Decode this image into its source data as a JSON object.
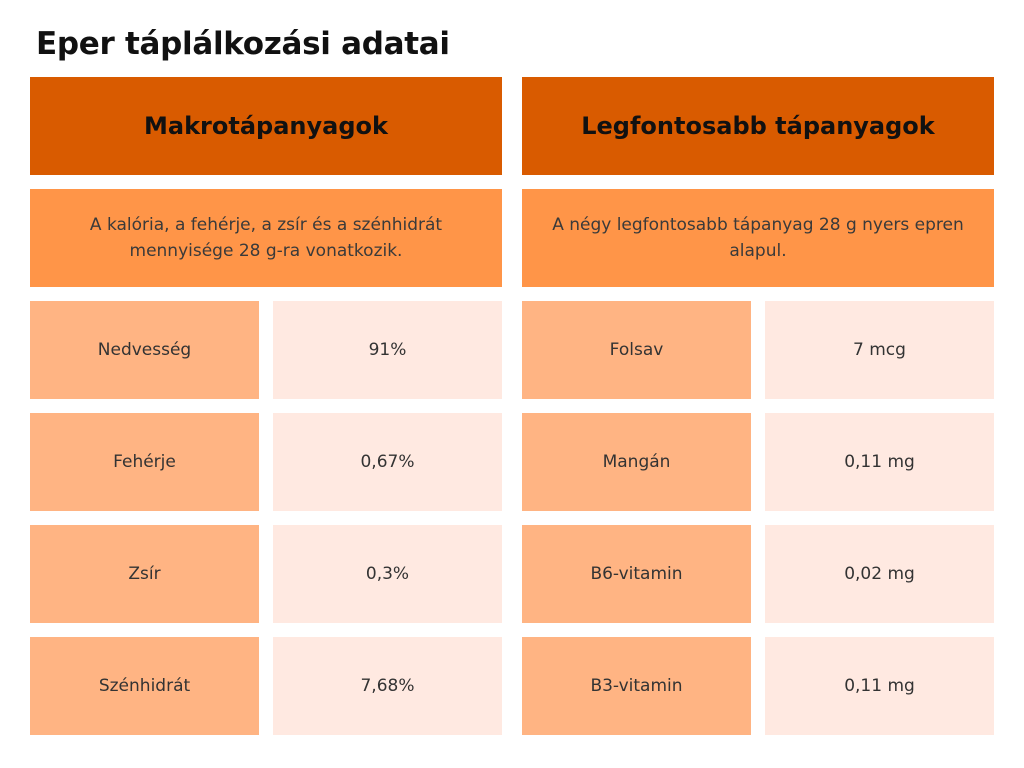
{
  "title": "Eper táplálkozási adatai",
  "sections": [
    {
      "header": "Makrotápanyagok",
      "note": "A kalória, a fehérje, a zsír és a szénhidrát mennyisége 28 g-ra vonatkozik.",
      "rows": [
        {
          "label": "Nedvesség",
          "value": "91%"
        },
        {
          "label": "Fehérje",
          "value": "0,67%"
        },
        {
          "label": "Zsír",
          "value": "0,3%"
        },
        {
          "label": "Szénhidrát",
          "value": "7,68%"
        }
      ]
    },
    {
      "header": "Legfontosabb tápanyagok",
      "note": "A négy legfontosabb tápanyag 28 g nyers epren alapul.",
      "rows": [
        {
          "label": "Folsav",
          "value": "7 mcg"
        },
        {
          "label": "Mangán",
          "value": "0,11 mg"
        },
        {
          "label": "B6-vitamin",
          "value": "0,02 mg"
        },
        {
          "label": "B3-vitamin",
          "value": "0,11 mg"
        }
      ]
    }
  ],
  "colors": {
    "header": "#d95b00",
    "note": "#ff9548",
    "label_cell": "#ffb483",
    "value_cell": "#ffe9e1"
  }
}
